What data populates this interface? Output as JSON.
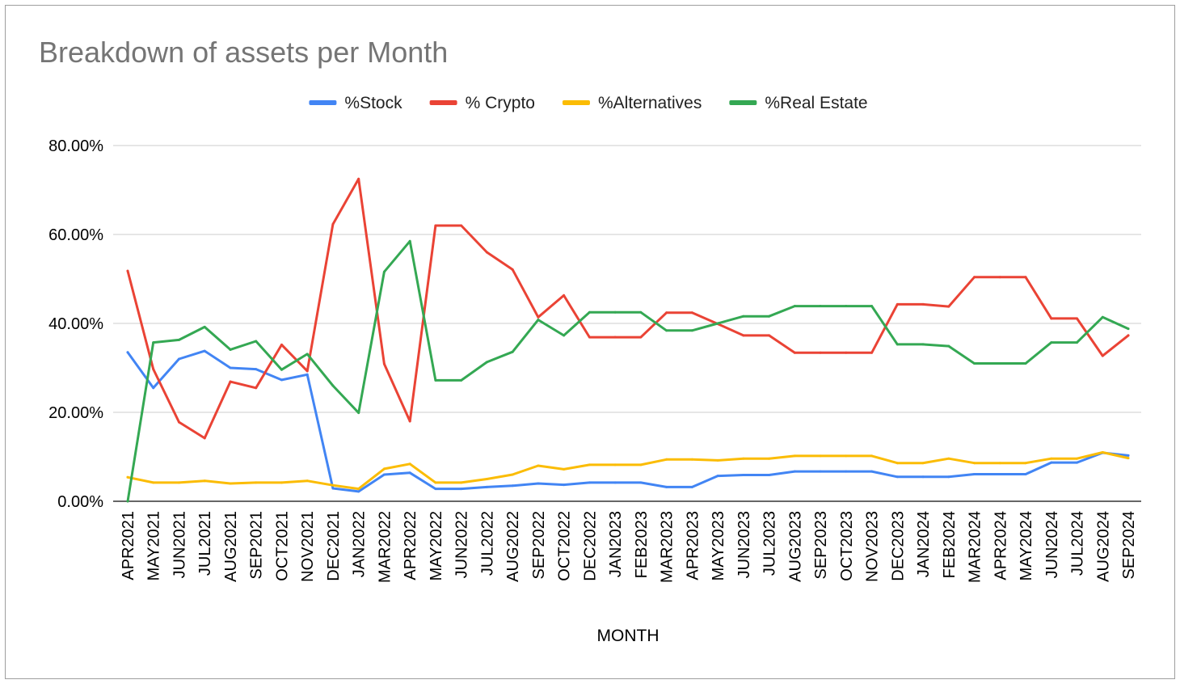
{
  "chart_data": {
    "type": "line",
    "title": "Breakdown of assets per Month",
    "xlabel": "MONTH",
    "ylabel": "",
    "ylim": [
      0,
      80
    ],
    "yticks": [
      "0.00%",
      "20.00%",
      "40.00%",
      "60.00%",
      "80.00%"
    ],
    "grid": true,
    "legend": "top-center",
    "categories": [
      "APR2021",
      "MAY2021",
      "JUN2021",
      "JUL2021",
      "AUG2021",
      "SEP2021",
      "OCT2021",
      "NOV2021",
      "DEC2021",
      "JAN2022",
      "MAR2022",
      "APR2022",
      "MAY2022",
      "JUN2022",
      "JUL2022",
      "AUG2022",
      "SEP2022",
      "OCT2022",
      "DEC2022",
      "JAN2023",
      "FEB2023",
      "MAR2023",
      "APR2023",
      "MAY2023",
      "JUN2023",
      "JUL2023",
      "AUG2023",
      "SEP2023",
      "OCT2023",
      "NOV2023",
      "DEC2023",
      "JAN2024",
      "FEB2024",
      "MAR2024",
      "APR2024",
      "MAY2024",
      "JUN2024",
      "JUL2024",
      "AUG2024",
      "SEP2024"
    ],
    "series": [
      {
        "name": "%Stock",
        "color": "#4285F4",
        "values": [
          33.5,
          25.5,
          32.0,
          33.8,
          30.0,
          29.7,
          27.3,
          28.5,
          2.9,
          2.2,
          6.0,
          6.4,
          2.8,
          2.8,
          3.2,
          3.5,
          4.0,
          3.7,
          4.2,
          4.2,
          4.2,
          3.2,
          3.2,
          5.7,
          5.9,
          5.9,
          6.7,
          6.7,
          6.7,
          6.7,
          5.5,
          5.5,
          5.5,
          6.1,
          6.1,
          6.1,
          8.7,
          8.7,
          10.9,
          10.3
        ]
      },
      {
        "name": "% Crypto",
        "color": "#EA4335",
        "values": [
          51.8,
          29.7,
          17.8,
          14.2,
          26.9,
          25.5,
          35.2,
          29.3,
          62.3,
          72.5,
          30.9,
          18.0,
          62.0,
          62.0,
          56.0,
          52.1,
          41.4,
          46.3,
          36.9,
          36.9,
          36.9,
          42.4,
          42.4,
          39.9,
          37.3,
          37.3,
          33.4,
          33.4,
          33.4,
          33.4,
          44.3,
          44.3,
          43.8,
          50.4,
          50.4,
          50.4,
          41.1,
          41.1,
          32.7,
          37.3
        ]
      },
      {
        "name": "%Alternatives",
        "color": "#FBBC04",
        "values": [
          5.4,
          4.2,
          4.2,
          4.6,
          4.0,
          4.2,
          4.2,
          4.6,
          3.6,
          2.8,
          7.3,
          8.4,
          4.2,
          4.2,
          5.0,
          6.0,
          8.0,
          7.2,
          8.2,
          8.2,
          8.2,
          9.4,
          9.4,
          9.2,
          9.6,
          9.6,
          10.2,
          10.2,
          10.2,
          10.2,
          8.6,
          8.6,
          9.6,
          8.6,
          8.6,
          8.6,
          9.6,
          9.6,
          11.0,
          9.7
        ]
      },
      {
        "name": "%Real Estate",
        "color": "#34A853",
        "values": [
          0.0,
          35.7,
          36.3,
          39.2,
          34.1,
          36.0,
          29.6,
          33.1,
          26.0,
          19.9,
          51.6,
          58.5,
          27.2,
          27.2,
          31.3,
          33.6,
          40.8,
          37.3,
          42.5,
          42.5,
          42.5,
          38.4,
          38.4,
          40.0,
          41.6,
          41.6,
          43.9,
          43.9,
          43.9,
          43.9,
          35.3,
          35.3,
          34.9,
          31.0,
          31.0,
          31.0,
          35.7,
          35.7,
          41.4,
          38.8
        ]
      }
    ]
  }
}
